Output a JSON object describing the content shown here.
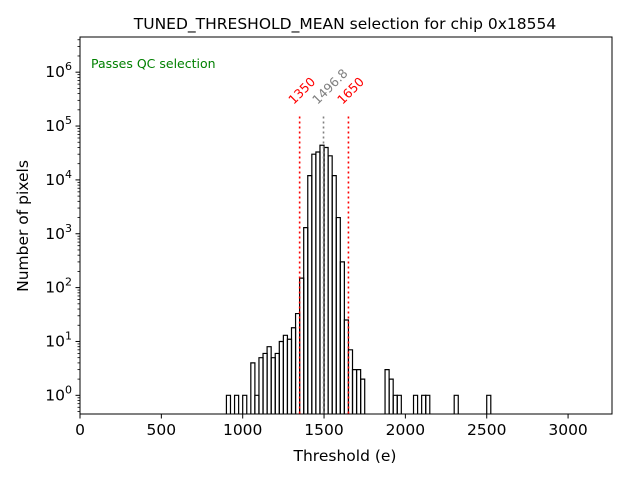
{
  "chart_data": {
    "type": "histogram",
    "title": "TUNED_THRESHOLD_MEAN selection for chip 0x18554",
    "xlabel": "Threshold (e)",
    "ylabel": "Number of pixels",
    "xlim": [
      0,
      3270
    ],
    "ylim": [
      0.45,
      4500000
    ],
    "yscale": "log",
    "x_ticks": [
      0,
      500,
      1000,
      1500,
      2000,
      2500,
      3000
    ],
    "x_tick_labels": [
      "0",
      "500",
      "1000",
      "1500",
      "2000",
      "2500",
      "3000"
    ],
    "y_tick_labels": [
      {
        "value": 1,
        "label": "10^0"
      },
      {
        "value": 10,
        "label": "10^1"
      },
      {
        "value": 100,
        "label": "10^2"
      },
      {
        "value": 1000,
        "label": "10^3"
      },
      {
        "value": 10000,
        "label": "10^4"
      },
      {
        "value": 100000,
        "label": "10^5"
      },
      {
        "value": 1000000,
        "label": "10^6"
      }
    ],
    "annotation": {
      "text": "Passes QC selection",
      "color": "#008000",
      "position": "top-left"
    },
    "bins": [
      [
        900,
        925,
        1
      ],
      [
        925,
        950,
        0
      ],
      [
        950,
        975,
        1
      ],
      [
        975,
        1000,
        0
      ],
      [
        1000,
        1025,
        1
      ],
      [
        1025,
        1050,
        0
      ],
      [
        1050,
        1075,
        4
      ],
      [
        1075,
        1100,
        1
      ],
      [
        1100,
        1125,
        5
      ],
      [
        1125,
        1150,
        6
      ],
      [
        1150,
        1175,
        8
      ],
      [
        1175,
        1200,
        5
      ],
      [
        1200,
        1225,
        6
      ],
      [
        1225,
        1250,
        10
      ],
      [
        1250,
        1275,
        13
      ],
      [
        1275,
        1300,
        11
      ],
      [
        1300,
        1325,
        18
      ],
      [
        1325,
        1350,
        33
      ],
      [
        1350,
        1375,
        150
      ],
      [
        1375,
        1400,
        1300
      ],
      [
        1400,
        1425,
        12000
      ],
      [
        1425,
        1450,
        30000
      ],
      [
        1450,
        1475,
        33000
      ],
      [
        1475,
        1500,
        44000
      ],
      [
        1500,
        1525,
        40000
      ],
      [
        1525,
        1550,
        28000
      ],
      [
        1550,
        1575,
        12000
      ],
      [
        1575,
        1600,
        2000
      ],
      [
        1600,
        1625,
        300
      ],
      [
        1625,
        1650,
        25
      ],
      [
        1650,
        1675,
        7
      ],
      [
        1675,
        1700,
        3
      ],
      [
        1700,
        1725,
        3
      ],
      [
        1725,
        1750,
        2
      ],
      [
        1750,
        1775,
        0
      ],
      [
        1775,
        1800,
        0
      ],
      [
        1800,
        1825,
        0
      ],
      [
        1825,
        1850,
        0
      ],
      [
        1850,
        1875,
        0
      ],
      [
        1875,
        1900,
        3
      ],
      [
        1900,
        1925,
        2
      ],
      [
        1925,
        1950,
        1
      ],
      [
        1950,
        1975,
        1
      ],
      [
        1975,
        2000,
        0
      ],
      [
        2000,
        2025,
        0
      ],
      [
        2025,
        2050,
        0
      ],
      [
        2050,
        2075,
        1
      ],
      [
        2075,
        2100,
        0
      ],
      [
        2100,
        2125,
        1
      ],
      [
        2125,
        2150,
        1
      ],
      [
        2150,
        2175,
        0
      ],
      [
        2300,
        2325,
        1
      ],
      [
        2500,
        2525,
        1
      ]
    ],
    "vlines": [
      {
        "x": 1350,
        "label": "1350",
        "color": "#ff0000",
        "style": "dotted"
      },
      {
        "x": 1496.8,
        "label": "1496.8",
        "color": "#808080",
        "style": "dotted"
      },
      {
        "x": 1650,
        "label": "1650",
        "color": "#ff0000",
        "style": "dotted"
      }
    ]
  }
}
